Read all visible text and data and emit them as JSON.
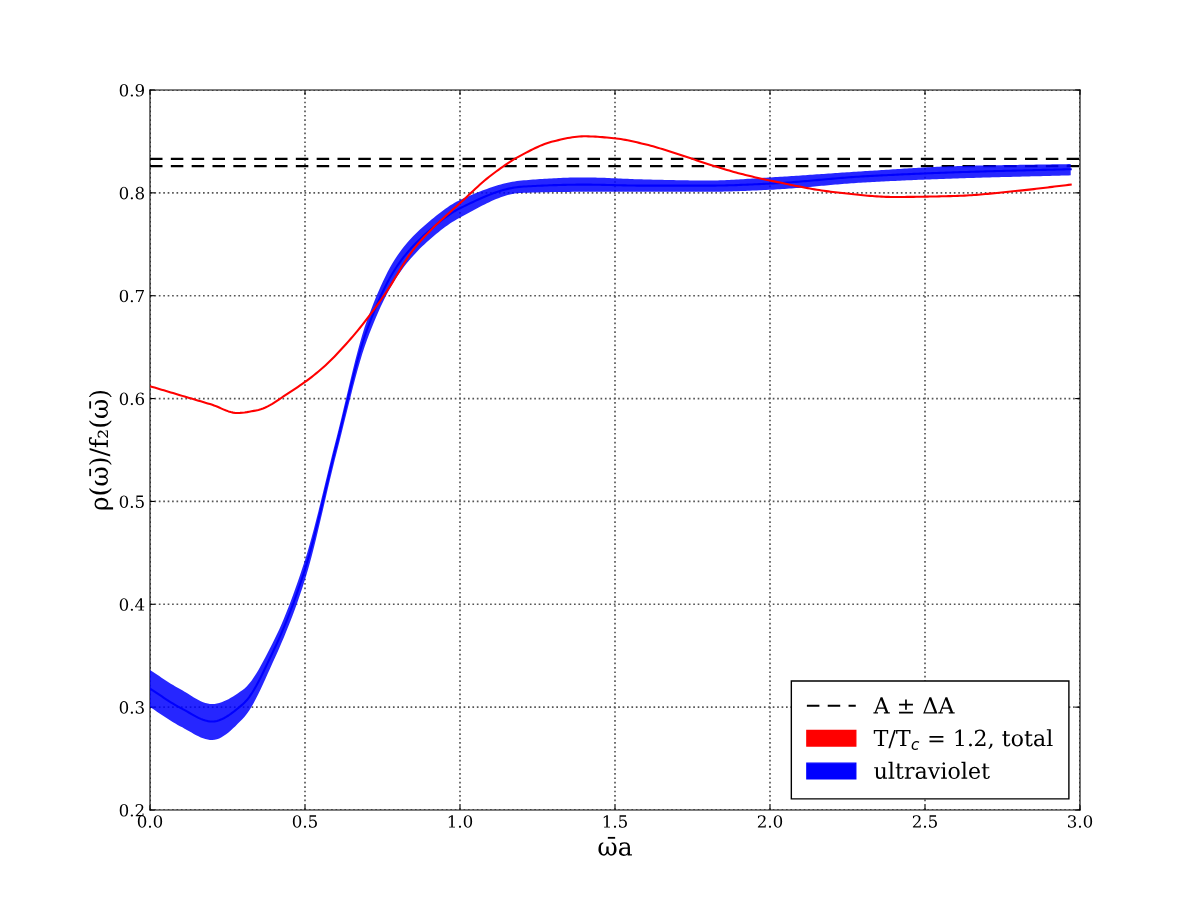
{
  "chart_data": {
    "type": "line",
    "xlabel": "ω̄a",
    "ylabel": "ρ(ω̄)/f₂(ω̄)",
    "xlim": [
      0.0,
      3.0
    ],
    "xticks": [
      {
        "value": 0,
        "label": "0.0"
      },
      0.5,
      {
        "value": 1,
        "label": "1.0"
      },
      1.5,
      {
        "value": 2,
        "label": "2.0"
      },
      2.5,
      {
        "value": 3,
        "label": "3.0"
      }
    ],
    "ylim": [
      0.2,
      0.9
    ],
    "yticks": [
      0.2,
      0.3,
      0.4,
      0.5,
      0.6,
      0.7,
      0.8,
      0.9
    ],
    "grid": true,
    "legend": "bottom right",
    "ref_lines": [
      {
        "axis": "y",
        "value": 0.833,
        "label": "A ± ΔA",
        "color": "#000000",
        "line_style": "dashed"
      },
      {
        "axis": "y",
        "value": 0.826,
        "color": "#000000",
        "line_style": "dashed"
      }
    ],
    "series": [
      {
        "name": "T/T$_{c}$ = 1.2, total",
        "color": "#ff0000",
        "x": [
          0.0,
          0.1,
          0.2,
          0.28,
          0.35,
          0.45,
          0.55,
          0.65,
          0.75,
          0.85,
          0.9,
          1.0,
          1.1,
          1.2,
          1.3,
          1.4,
          1.5,
          1.6,
          1.7,
          1.8,
          1.9,
          2.0,
          2.2,
          2.4,
          2.6,
          2.8,
          2.97
        ],
        "values": [
          0.612,
          0.603,
          0.594,
          0.586,
          0.589,
          0.606,
          0.628,
          0.659,
          0.698,
          0.745,
          0.762,
          0.79,
          0.817,
          0.837,
          0.85,
          0.855,
          0.853,
          0.847,
          0.838,
          0.828,
          0.819,
          0.812,
          0.801,
          0.796,
          0.797,
          0.802,
          0.808
        ]
      },
      {
        "name": "ultraviolet",
        "color": "#0000ff",
        "x": [
          0.0,
          0.1,
          0.2,
          0.3,
          0.4,
          0.5,
          0.6,
          0.7,
          0.8,
          0.9,
          1.0,
          1.2,
          1.4,
          1.6,
          1.8,
          2.0,
          2.3,
          2.6,
          2.97
        ],
        "values": [
          0.318,
          0.299,
          0.286,
          0.303,
          0.356,
          0.434,
          0.553,
          0.667,
          0.73,
          0.763,
          0.785,
          0.806,
          0.808,
          0.807,
          0.807,
          0.809,
          0.816,
          0.82,
          0.823
        ],
        "lower": [
          0.3,
          0.281,
          0.268,
          0.289,
          0.346,
          0.424,
          0.545,
          0.657,
          0.72,
          0.754,
          0.776,
          0.8,
          0.801,
          0.801,
          0.801,
          0.803,
          0.81,
          0.814,
          0.817
        ],
        "upper": [
          0.336,
          0.317,
          0.303,
          0.317,
          0.365,
          0.443,
          0.56,
          0.676,
          0.74,
          0.772,
          0.793,
          0.812,
          0.815,
          0.813,
          0.812,
          0.815,
          0.821,
          0.826,
          0.828
        ]
      }
    ]
  }
}
